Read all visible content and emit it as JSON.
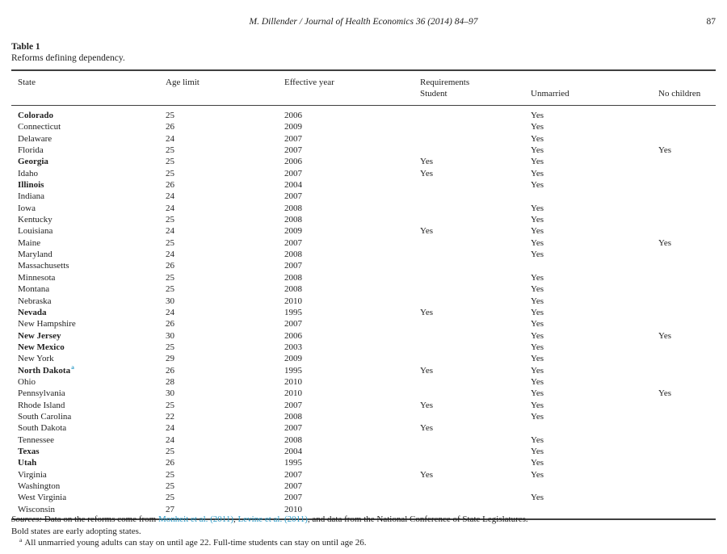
{
  "page_header": {
    "running_head": "M. Dillender / Journal of Health Economics 36 (2014) 84–97",
    "page_number": "87"
  },
  "table": {
    "label": "Table 1",
    "caption": "Reforms defining dependency.",
    "header": {
      "state": "State",
      "age_limit": "Age limit",
      "effective_year": "Effective year",
      "requirements": "Requirements",
      "student": "Student",
      "unmarried": "Unmarried",
      "no_children": "No children"
    },
    "rows": [
      {
        "state": "Colorado",
        "bold": true,
        "footnote": "",
        "age_limit": "25",
        "effective_year": "2006",
        "student": "",
        "unmarried": "Yes",
        "no_children": ""
      },
      {
        "state": "Connecticut",
        "bold": false,
        "footnote": "",
        "age_limit": "26",
        "effective_year": "2009",
        "student": "",
        "unmarried": "Yes",
        "no_children": ""
      },
      {
        "state": "Delaware",
        "bold": false,
        "footnote": "",
        "age_limit": "24",
        "effective_year": "2007",
        "student": "",
        "unmarried": "Yes",
        "no_children": ""
      },
      {
        "state": "Florida",
        "bold": false,
        "footnote": "",
        "age_limit": "25",
        "effective_year": "2007",
        "student": "",
        "unmarried": "Yes",
        "no_children": "Yes"
      },
      {
        "state": "Georgia",
        "bold": true,
        "footnote": "",
        "age_limit": "25",
        "effective_year": "2006",
        "student": "Yes",
        "unmarried": "Yes",
        "no_children": ""
      },
      {
        "state": "Idaho",
        "bold": false,
        "footnote": "",
        "age_limit": "25",
        "effective_year": "2007",
        "student": "Yes",
        "unmarried": "Yes",
        "no_children": ""
      },
      {
        "state": "Illinois",
        "bold": true,
        "footnote": "",
        "age_limit": "26",
        "effective_year": "2004",
        "student": "",
        "unmarried": "Yes",
        "no_children": ""
      },
      {
        "state": "Indiana",
        "bold": false,
        "footnote": "",
        "age_limit": "24",
        "effective_year": "2007",
        "student": "",
        "unmarried": "",
        "no_children": ""
      },
      {
        "state": "Iowa",
        "bold": false,
        "footnote": "",
        "age_limit": "24",
        "effective_year": "2008",
        "student": "",
        "unmarried": "Yes",
        "no_children": ""
      },
      {
        "state": "Kentucky",
        "bold": false,
        "footnote": "",
        "age_limit": "25",
        "effective_year": "2008",
        "student": "",
        "unmarried": "Yes",
        "no_children": ""
      },
      {
        "state": "Louisiana",
        "bold": false,
        "footnote": "",
        "age_limit": "24",
        "effective_year": "2009",
        "student": "Yes",
        "unmarried": "Yes",
        "no_children": ""
      },
      {
        "state": "Maine",
        "bold": false,
        "footnote": "",
        "age_limit": "25",
        "effective_year": "2007",
        "student": "",
        "unmarried": "Yes",
        "no_children": "Yes"
      },
      {
        "state": "Maryland",
        "bold": false,
        "footnote": "",
        "age_limit": "24",
        "effective_year": "2008",
        "student": "",
        "unmarried": "Yes",
        "no_children": ""
      },
      {
        "state": "Massachusetts",
        "bold": false,
        "footnote": "",
        "age_limit": "26",
        "effective_year": "2007",
        "student": "",
        "unmarried": "",
        "no_children": ""
      },
      {
        "state": "Minnesota",
        "bold": false,
        "footnote": "",
        "age_limit": "25",
        "effective_year": "2008",
        "student": "",
        "unmarried": "Yes",
        "no_children": ""
      },
      {
        "state": "Montana",
        "bold": false,
        "footnote": "",
        "age_limit": "25",
        "effective_year": "2008",
        "student": "",
        "unmarried": "Yes",
        "no_children": ""
      },
      {
        "state": "Nebraska",
        "bold": false,
        "footnote": "",
        "age_limit": "30",
        "effective_year": "2010",
        "student": "",
        "unmarried": "Yes",
        "no_children": ""
      },
      {
        "state": "Nevada",
        "bold": true,
        "footnote": "",
        "age_limit": "24",
        "effective_year": "1995",
        "student": "Yes",
        "unmarried": "Yes",
        "no_children": ""
      },
      {
        "state": "New Hampshire",
        "bold": false,
        "footnote": "",
        "age_limit": "26",
        "effective_year": "2007",
        "student": "",
        "unmarried": "Yes",
        "no_children": ""
      },
      {
        "state": "New Jersey",
        "bold": true,
        "footnote": "",
        "age_limit": "30",
        "effective_year": "2006",
        "student": "",
        "unmarried": "Yes",
        "no_children": "Yes"
      },
      {
        "state": "New Mexico",
        "bold": true,
        "footnote": "",
        "age_limit": "25",
        "effective_year": "2003",
        "student": "",
        "unmarried": "Yes",
        "no_children": ""
      },
      {
        "state": "New York",
        "bold": false,
        "footnote": "",
        "age_limit": "29",
        "effective_year": "2009",
        "student": "",
        "unmarried": "Yes",
        "no_children": ""
      },
      {
        "state": "North Dakota",
        "bold": true,
        "footnote": "a",
        "age_limit": "26",
        "effective_year": "1995",
        "student": "Yes",
        "unmarried": "Yes",
        "no_children": ""
      },
      {
        "state": "Ohio",
        "bold": false,
        "footnote": "",
        "age_limit": "28",
        "effective_year": "2010",
        "student": "",
        "unmarried": "Yes",
        "no_children": ""
      },
      {
        "state": "Pennsylvania",
        "bold": false,
        "footnote": "",
        "age_limit": "30",
        "effective_year": "2010",
        "student": "",
        "unmarried": "Yes",
        "no_children": "Yes"
      },
      {
        "state": "Rhode Island",
        "bold": false,
        "footnote": "",
        "age_limit": "25",
        "effective_year": "2007",
        "student": "Yes",
        "unmarried": "Yes",
        "no_children": ""
      },
      {
        "state": "South Carolina",
        "bold": false,
        "footnote": "",
        "age_limit": "22",
        "effective_year": "2008",
        "student": "",
        "unmarried": "Yes",
        "no_children": ""
      },
      {
        "state": "South Dakota",
        "bold": false,
        "footnote": "",
        "age_limit": "24",
        "effective_year": "2007",
        "student": "Yes",
        "unmarried": "",
        "no_children": ""
      },
      {
        "state": "Tennessee",
        "bold": false,
        "footnote": "",
        "age_limit": "24",
        "effective_year": "2008",
        "student": "",
        "unmarried": "Yes",
        "no_children": ""
      },
      {
        "state": "Texas",
        "bold": true,
        "footnote": "",
        "age_limit": "25",
        "effective_year": "2004",
        "student": "",
        "unmarried": "Yes",
        "no_children": ""
      },
      {
        "state": "Utah",
        "bold": true,
        "footnote": "",
        "age_limit": "26",
        "effective_year": "1995",
        "student": "",
        "unmarried": "Yes",
        "no_children": ""
      },
      {
        "state": "Virginia",
        "bold": false,
        "footnote": "",
        "age_limit": "25",
        "effective_year": "2007",
        "student": "Yes",
        "unmarried": "Yes",
        "no_children": ""
      },
      {
        "state": "Washington",
        "bold": false,
        "footnote": "",
        "age_limit": "25",
        "effective_year": "2007",
        "student": "",
        "unmarried": "",
        "no_children": ""
      },
      {
        "state": "West Virginia",
        "bold": false,
        "footnote": "",
        "age_limit": "25",
        "effective_year": "2007",
        "student": "",
        "unmarried": "Yes",
        "no_children": ""
      },
      {
        "state": "Wisconsin",
        "bold": false,
        "footnote": "",
        "age_limit": "27",
        "effective_year": "2010",
        "student": "",
        "unmarried": "",
        "no_children": ""
      }
    ]
  },
  "notes": {
    "sources_label": "Sources:",
    "sources_text_1": " Data on the reforms come from ",
    "link_monheit": "Monheit et al. (2011)",
    "sources_text_2": ", ",
    "link_levine": "Levine et al. (2011)",
    "sources_text_3": ", and data from the National Conference of State Legislatures.",
    "bold_note": "Bold states are early adopting states.",
    "footnote_marker": "a",
    "footnote_text": "All unmarried young adults can stay on until age 22. Full-time students can stay on until age 26."
  },
  "colors": {
    "link": "#2d9bc7",
    "text": "#222222",
    "rule": "#3f3f3f"
  }
}
